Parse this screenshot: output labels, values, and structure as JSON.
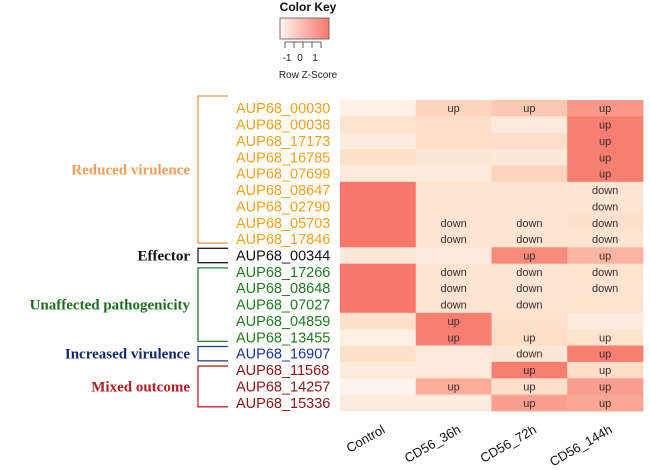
{
  "chart_data": {
    "type": "heatmap",
    "title": "",
    "color_key": {
      "title": "Color Key",
      "xlabel": "Row Z-Score",
      "ticks": [
        "-1",
        "0",
        "1"
      ],
      "range": [
        -1.5,
        1.5
      ],
      "low_color": "#fff6f0",
      "high_color": "#f8776c"
    },
    "columns": [
      "Control",
      "CD56_36h",
      "CD56_72h",
      "CD56_144h"
    ],
    "rows": [
      {
        "gene": "AUP68_00030",
        "group": 0,
        "z": [
          -1.2,
          0.1,
          0.3,
          1.0
        ],
        "ann": [
          "",
          "up",
          "up",
          "up"
        ]
      },
      {
        "gene": "AUP68_00038",
        "group": 0,
        "z": [
          -0.4,
          -0.2,
          -0.8,
          1.4
        ],
        "ann": [
          "",
          "",
          "",
          "up"
        ]
      },
      {
        "gene": "AUP68_17173",
        "group": 0,
        "z": [
          -0.9,
          -0.2,
          -0.2,
          1.4
        ],
        "ann": [
          "",
          "",
          "",
          "up"
        ]
      },
      {
        "gene": "AUP68_16785",
        "group": 0,
        "z": [
          -0.3,
          -0.6,
          -0.7,
          1.4
        ],
        "ann": [
          "",
          "",
          "",
          "up"
        ]
      },
      {
        "gene": "AUP68_07699",
        "group": 0,
        "z": [
          -0.8,
          -0.8,
          0.1,
          1.4
        ],
        "ann": [
          "",
          "",
          "",
          "up"
        ]
      },
      {
        "gene": "AUP68_08647",
        "group": 0,
        "z": [
          1.5,
          -0.5,
          -0.5,
          -0.5
        ],
        "ann": [
          "",
          "",
          "",
          "down"
        ]
      },
      {
        "gene": "AUP68_02790",
        "group": 0,
        "z": [
          1.5,
          -0.5,
          -0.5,
          -0.5
        ],
        "ann": [
          "",
          "",
          "",
          "down"
        ]
      },
      {
        "gene": "AUP68_05703",
        "group": 0,
        "z": [
          1.5,
          -0.5,
          -0.5,
          -0.3
        ],
        "ann": [
          "",
          "down",
          "down",
          "down"
        ]
      },
      {
        "gene": "AUP68_17846",
        "group": 0,
        "z": [
          1.5,
          -0.5,
          -0.5,
          -0.5
        ],
        "ann": [
          "",
          "down",
          "down",
          "down"
        ]
      },
      {
        "gene": "AUP68_00344",
        "group": 1,
        "z": [
          -0.7,
          -0.8,
          1.2,
          0.6
        ],
        "ann": [
          "",
          "",
          "up",
          "up"
        ]
      },
      {
        "gene": "AUP68_17266",
        "group": 2,
        "z": [
          1.5,
          -0.5,
          -0.5,
          -0.4
        ],
        "ann": [
          "",
          "down",
          "down",
          "down"
        ]
      },
      {
        "gene": "AUP68_08648",
        "group": 2,
        "z": [
          1.5,
          -0.5,
          -0.5,
          -0.5
        ],
        "ann": [
          "",
          "down",
          "down",
          "down"
        ]
      },
      {
        "gene": "AUP68_07027",
        "group": 2,
        "z": [
          1.5,
          -0.5,
          -0.5,
          -0.4
        ],
        "ann": [
          "",
          "down",
          "down",
          ""
        ]
      },
      {
        "gene": "AUP68_04859",
        "group": 2,
        "z": [
          -0.3,
          1.4,
          -0.3,
          -0.9
        ],
        "ann": [
          "",
          "up",
          "",
          ""
        ]
      },
      {
        "gene": "AUP68_13455",
        "group": 2,
        "z": [
          -1.0,
          1.4,
          -0.1,
          -0.4
        ],
        "ann": [
          "",
          "up",
          "up",
          "up"
        ]
      },
      {
        "gene": "AUP68_16907",
        "group": 3,
        "z": [
          -0.3,
          -0.8,
          -0.6,
          1.4
        ],
        "ann": [
          "",
          "",
          "down",
          "up"
        ]
      },
      {
        "gene": "AUP68_11568",
        "group": 4,
        "z": [
          -0.8,
          -0.8,
          1.4,
          -0.1
        ],
        "ann": [
          "",
          "",
          "up",
          "up"
        ]
      },
      {
        "gene": "AUP68_14257",
        "group": 4,
        "z": [
          -1.4,
          0.7,
          -0.2,
          0.9
        ],
        "ann": [
          "",
          "up",
          "up",
          "up"
        ]
      },
      {
        "gene": "AUP68_15336",
        "group": 4,
        "z": [
          -0.9,
          -0.9,
          0.9,
          0.8
        ],
        "ann": [
          "",
          "",
          "up",
          "up"
        ]
      }
    ],
    "groups": [
      {
        "name": "Reduced virulence",
        "color": "#e8914a",
        "label_color": "#f09d5a",
        "text_color": "#f0a020"
      },
      {
        "name": "Effector",
        "color": "#222222",
        "label_color": "#111111",
        "text_color": "#111111"
      },
      {
        "name": "Unaffected pathogenicity",
        "color": "#2e7d32",
        "label_color": "#1f6e1f",
        "text_color": "#1f7a1f"
      },
      {
        "name": "Increased virulence",
        "color": "#1a3f8a",
        "label_color": "#14286e",
        "text_color": "#1a2fa0"
      },
      {
        "name": "Mixed outcome",
        "color": "#c0282a",
        "label_color": "#b11e22",
        "text_color": "#8a1414"
      }
    ]
  }
}
